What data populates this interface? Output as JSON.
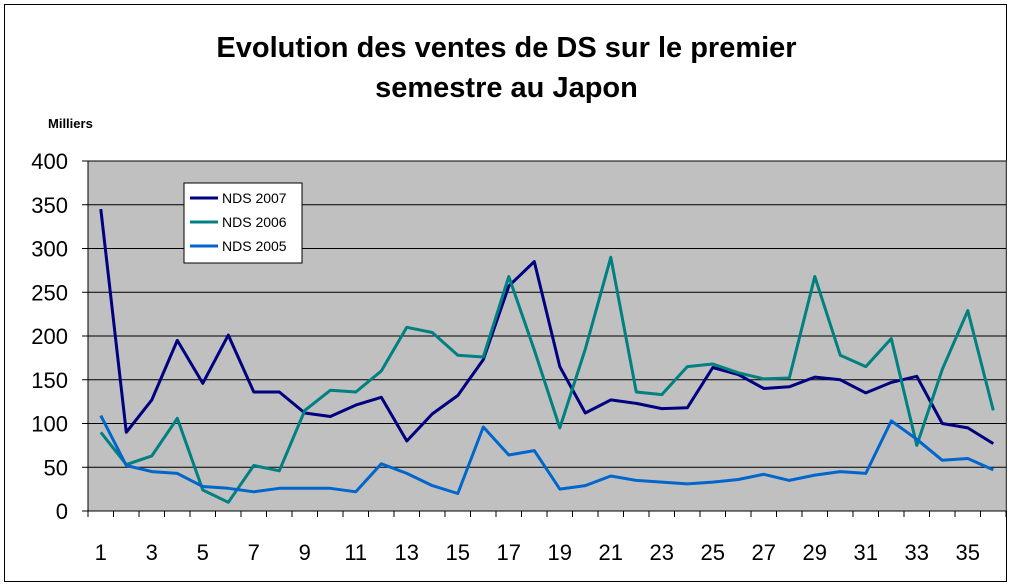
{
  "chart_data": {
    "type": "line",
    "title_lines": [
      "Evolution des ventes de DS sur le premier",
      "semestre au Japon"
    ],
    "unit_label": "Milliers",
    "ylim": [
      0,
      400
    ],
    "yticks": [
      0,
      50,
      100,
      150,
      200,
      250,
      300,
      350,
      400
    ],
    "x": [
      1,
      2,
      3,
      4,
      5,
      6,
      7,
      8,
      9,
      10,
      11,
      12,
      13,
      14,
      15,
      16,
      17,
      18,
      19,
      20,
      21,
      22,
      23,
      24,
      25,
      26,
      27,
      28,
      29,
      30,
      31,
      32,
      33,
      34,
      35,
      36
    ],
    "xtick_labels": [
      "1",
      "3",
      "5",
      "7",
      "9",
      "11",
      "13",
      "15",
      "17",
      "19",
      "21",
      "23",
      "25",
      "27",
      "29",
      "31",
      "33",
      "35"
    ],
    "grid": true,
    "legend_position": "top-left",
    "plot_background": "#c0c0c0",
    "series": [
      {
        "name": "NDS 2007",
        "color": "#000080",
        "values": [
          345,
          90,
          127,
          195,
          146,
          201,
          136,
          136,
          112,
          108,
          121,
          130,
          80,
          111,
          132,
          173,
          257,
          285,
          165,
          112,
          127,
          123,
          117,
          118,
          164,
          156,
          140,
          142,
          153,
          150,
          135,
          147,
          154,
          100,
          95,
          77
        ]
      },
      {
        "name": "NDS 2006",
        "color": "#008080",
        "values": [
          90,
          53,
          63,
          106,
          24,
          10,
          52,
          46,
          115,
          138,
          136,
          160,
          210,
          204,
          178,
          176,
          268,
          184,
          95,
          185,
          290,
          136,
          133,
          165,
          168,
          158,
          151,
          152,
          268,
          178,
          165,
          197,
          75,
          162,
          229,
          115
        ]
      },
      {
        "name": "NDS 2005",
        "color": "#0066cc",
        "values": [
          109,
          52,
          45,
          43,
          28,
          26,
          22,
          26,
          26,
          26,
          22,
          54,
          43,
          29,
          20,
          96,
          64,
          69,
          25,
          29,
          40,
          35,
          33,
          31,
          33,
          36,
          42,
          35,
          41,
          45,
          43,
          103,
          82,
          58,
          60,
          47
        ]
      }
    ]
  }
}
